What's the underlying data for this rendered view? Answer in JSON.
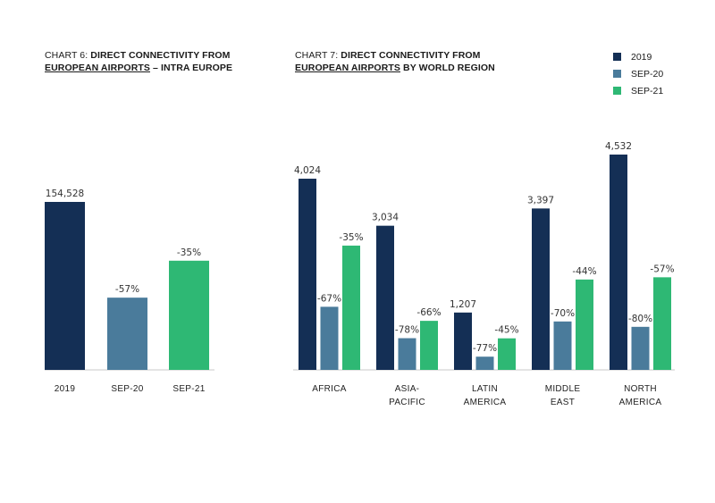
{
  "chart6": {
    "title_prefix": "CHART 6: ",
    "title_line1_bold": "DIRECT CONNECTIVITY FROM",
    "title_line2_underlined": "EUROPEAN AIRPORTS",
    "title_line2_rest": " – INTRA EUROPE"
  },
  "chart7": {
    "title_prefix": "CHART 7: ",
    "title_line1_bold": "DIRECT CONNECTIVITY FROM",
    "title_line2_underlined": "EUROPEAN AIRPORTS",
    "title_line2_rest": " BY WORLD REGION"
  },
  "legend": [
    {
      "label": "2019",
      "color": "#142f55"
    },
    {
      "label": "SEP-20",
      "color": "#4a7b9b"
    },
    {
      "label": "SEP-21",
      "color": "#2eb874"
    }
  ],
  "chart_data": [
    {
      "type": "bar",
      "categories": [
        "2019",
        "SEP-20",
        "SEP-21"
      ],
      "values": [
        154528,
        66447,
        100443
      ],
      "labels": [
        "154,528",
        "-57%",
        "-35%"
      ],
      "colors": [
        "#142f55",
        "#4a7b9b",
        "#2eb874"
      ],
      "title": "CHART 6: DIRECT CONNECTIVITY FROM EUROPEAN AIRPORTS – INTRA EUROPE",
      "ylim": [
        0,
        154528
      ]
    },
    {
      "type": "bar",
      "categories": [
        [
          "AFRICA"
        ],
        [
          "ASIA-",
          "PACIFIC"
        ],
        [
          "LATIN",
          "AMERICA"
        ],
        [
          "MIDDLE",
          "EAST"
        ],
        [
          "NORTH",
          "AMERICA"
        ]
      ],
      "series": [
        {
          "name": "2019",
          "values": [
            4024,
            3034,
            1207,
            3397,
            4532
          ],
          "labels": [
            "4,024",
            "3,034",
            "1,207",
            "3,397",
            "4,532"
          ]
        },
        {
          "name": "SEP-20",
          "values": [
            1328,
            667,
            278,
            1019,
            906
          ],
          "labels": [
            "-67%",
            "-78%",
            "-77%",
            "-70%",
            "-80%"
          ]
        },
        {
          "name": "SEP-21",
          "values": [
            2616,
            1032,
            664,
            1902,
            1949
          ],
          "labels": [
            "-35%",
            "-66%",
            "-45%",
            "-44%",
            "-57%"
          ]
        }
      ],
      "title": "CHART 7: DIRECT CONNECTIVITY FROM EUROPEAN AIRPORTS BY WORLD REGION",
      "ylim": [
        0,
        4532
      ]
    }
  ]
}
